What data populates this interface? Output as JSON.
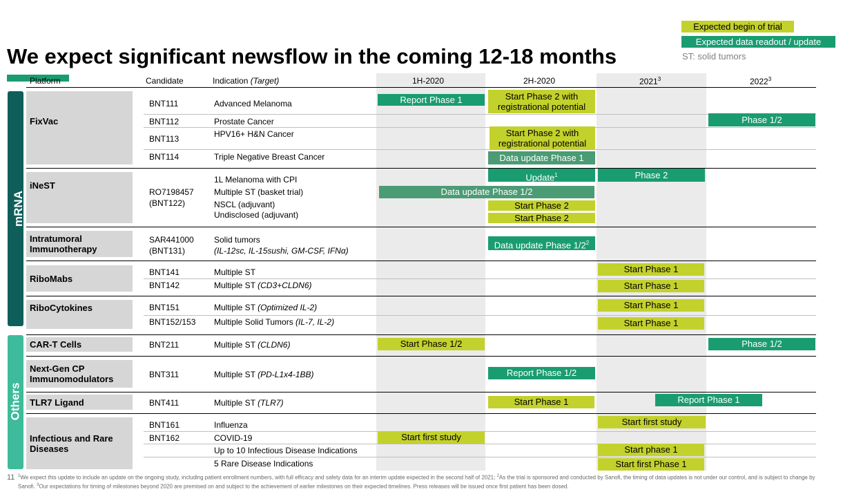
{
  "title": "We expect significant newsflow in the coming 12-18 months",
  "legend": {
    "begin_trial": "Expected begin of trial",
    "data_readout": "Expected data readout / update",
    "st_note": "ST: solid tumors"
  },
  "headers": {
    "platform": "Platform",
    "candidate": "Candidate",
    "indication": "Indication",
    "target": "(Target)",
    "h1_2020": "1H-2020",
    "h2_2020": "2H-2020",
    "y2021": "2021",
    "y2022": "2022",
    "sup": "3"
  },
  "sections": {
    "mrna": "mRNA",
    "others": "Others"
  },
  "platforms": {
    "fixvac": "FixVac",
    "inest": "iNeST",
    "intratumoral_1": "Intratumoral",
    "intratumoral_2": "Immunotherapy",
    "ribomabs": "RiboMabs",
    "ribocytokines": "RiboCytokines",
    "cart": "CAR-T Cells",
    "nextgen_1": "Next-Gen CP",
    "nextgen_2": "Immunomodulators",
    "tlr7": "TLR7 Ligand",
    "infectious_1": "Infectious and Rare",
    "infectious_2": "Diseases"
  },
  "candidates": {
    "bnt111": "BNT111",
    "bnt112": "BNT112",
    "bnt113": "BNT113",
    "bnt114": "BNT114",
    "ro_1": "RO7198457",
    "ro_2": "(BNT122)",
    "sar_1": "SAR441000",
    "sar_2": "(BNT131)",
    "bnt141": "BNT141",
    "bnt142": "BNT142",
    "bnt151": "BNT151",
    "bnt152": "BNT152/153",
    "bnt211": "BNT211",
    "bnt311": "BNT311",
    "bnt411": "BNT411",
    "bnt161": "BNT161",
    "bnt162": "BNT162"
  },
  "indications": {
    "adv_melanoma": "Advanced Melanoma",
    "prostate": "Prostate Cancer",
    "hpv": "HPV16+ H&N Cancer",
    "tnbc": "Triple Negative Breast Cancer",
    "melanoma_cpi": "1L Melanoma with CPI",
    "multiple_st_basket": "Multiple ST (basket trial)",
    "nscl": "NSCL (adjuvant)",
    "undisclosed": "Undisclosed (adjuvant)",
    "solid_tumors": "Solid tumors",
    "sar_target": "(IL-12sc, IL-15sushi, GM-CSF, IFNα)",
    "multiple_st": "Multiple ST",
    "multiple_st_prefix": "Multiple ST ",
    "cd3": "(CD3+CLDN6)",
    "il2": "(Optimized IL-2)",
    "multiple_solid_prefix": "Multiple Solid Tumors ",
    "il7": "(IL-7, IL-2)",
    "cldn6": "(CLDN6)",
    "pdl1": "(PD-L1x4-1BB)",
    "tlr7": "(TLR7)",
    "influenza": "Influenza",
    "covid": "COVID-19",
    "ten_infectious": "Up to 10 Infectious Disease Indications",
    "five_rare": "5 Rare Disease Indications"
  },
  "bars": {
    "report_p1": "Report Phase 1",
    "start_p2_reg_1": "Start Phase 2 with",
    "start_p2_reg_2": "registrational potential",
    "phase12": "Phase 1/2",
    "data_update_p1": "Data update Phase 1",
    "update": "Update",
    "phase2": "Phase 2",
    "data_update_p12": "Data update Phase 1/2",
    "start_p2": "Start Phase 2",
    "start_p1": "Start Phase 1",
    "start_p12": "Start Phase 1/2",
    "report_p12": "Report Phase 1/2",
    "start_first_study": "Start first study",
    "start_phase_1_lower": "Start phase 1",
    "start_first_phase_1": "Start first Phase 1",
    "sup1": "1",
    "sup2": "2"
  },
  "footer": {
    "page": "11",
    "s1": "1",
    "t1": "We expect this update to include an update on the ongoing study, including patient enrollment numbers, with full efficacy and safety data for an interim update expected in the second half of 2021; ",
    "s2": "2",
    "t2": "As the trial is sponsored and conducted by Sanofi, the timing of data updates is not under our control, and is subject to change by Sanofi. ",
    "s3": "3",
    "t3": "Our expectations for timing of milestones beyond 2020 are premised on and subject to the achievement of earlier milestones on their expected timelines. Press releases will be issued once first patient has been dosed."
  },
  "colors": {
    "yellow": "#c3d12c",
    "green": "#1a9c71",
    "teal_dark": "#0f5e5a",
    "teal_light": "#3dbb9a"
  }
}
